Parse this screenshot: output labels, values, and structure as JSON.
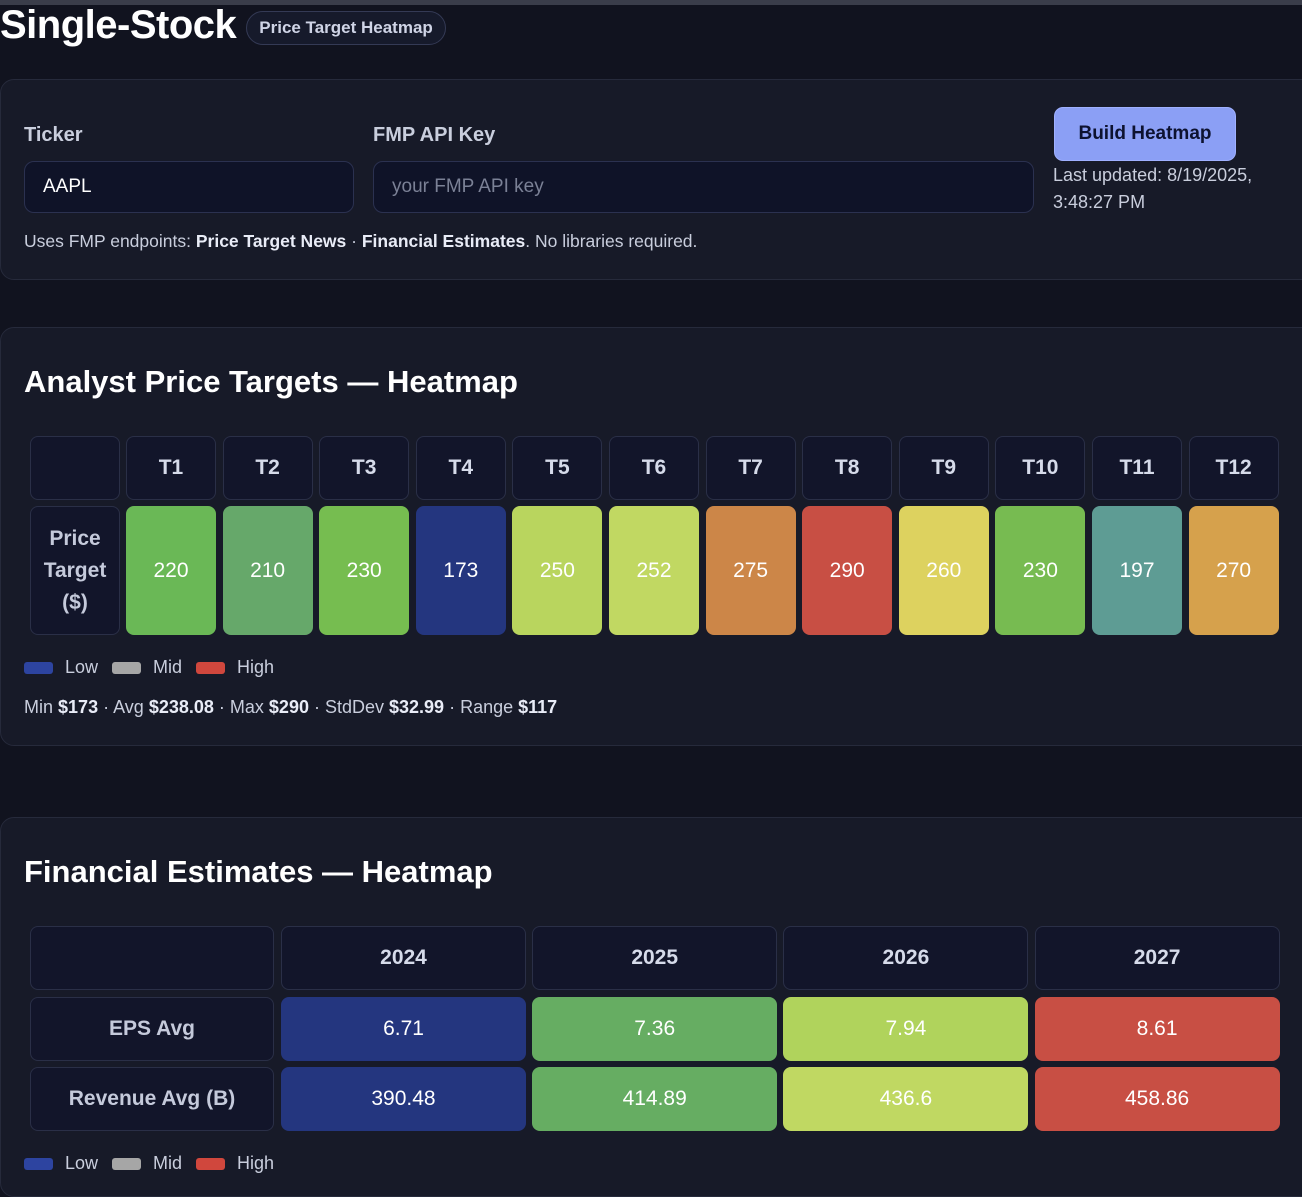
{
  "header": {
    "title": "Single-Stock",
    "badge": "Price Target Heatmap"
  },
  "controls": {
    "ticker_label": "Ticker",
    "ticker_value": "AAPL",
    "api_label": "FMP API Key",
    "api_placeholder": "your FMP API key",
    "build_button": "Build Heatmap",
    "last_updated_line1": "Last updated: 8/19/2025,",
    "last_updated_line2": "3:48:27 PM",
    "hint_prefix": "Uses FMP endpoints: ",
    "hint_endpoint1": "Price Target News",
    "hint_sep": " · ",
    "hint_endpoint2": "Financial Estimates",
    "hint_suffix": ". No libraries required."
  },
  "price_targets": {
    "title": "Analyst Price Targets — Heatmap",
    "row_label": "Price Target ($)",
    "columns": [
      "T1",
      "T2",
      "T3",
      "T4",
      "T5",
      "T6",
      "T7",
      "T8",
      "T9",
      "T10",
      "T11",
      "T12"
    ],
    "values": [
      "220",
      "210",
      "230",
      "173",
      "250",
      "252",
      "275",
      "290",
      "260",
      "230",
      "197",
      "270"
    ],
    "colors": [
      "#6ab856",
      "#66a86a",
      "#76bd50",
      "#24367f",
      "#b9d55e",
      "#c1d862",
      "#cc8648",
      "#c84f44",
      "#ddd25f",
      "#77bb51",
      "#5e9c94",
      "#d6a14c"
    ],
    "legend": {
      "low": "Low",
      "mid": "Mid",
      "high": "High"
    },
    "stats": {
      "min_label": "Min",
      "min": "$173",
      "avg_label": "Avg",
      "avg": "$238.08",
      "max_label": "Max",
      "max": "$290",
      "std_label": "StdDev",
      "std": "$32.99",
      "range_label": "Range",
      "range": "$117",
      "sep": " · "
    }
  },
  "financial_estimates": {
    "title": "Financial Estimates — Heatmap",
    "columns": [
      "2024",
      "2025",
      "2026",
      "2027"
    ],
    "rows": [
      {
        "label": "EPS Avg",
        "values": [
          "6.71",
          "7.36",
          "7.94",
          "8.61"
        ]
      },
      {
        "label": "Revenue Avg (B)",
        "values": [
          "390.48",
          "414.89",
          "436.6",
          "458.86"
        ]
      }
    ],
    "row_colors": [
      [
        "#24367f",
        "#66ad62",
        "#b0d35c",
        "#c84f44"
      ],
      [
        "#24367f",
        "#66ad62",
        "#c0d862",
        "#c84f44"
      ]
    ],
    "legend": {
      "low": "Low",
      "mid": "Mid",
      "high": "High"
    }
  },
  "legend_colors": {
    "low": "#2d44a0",
    "mid": "#a6a6a6",
    "high": "#d0473d"
  }
}
